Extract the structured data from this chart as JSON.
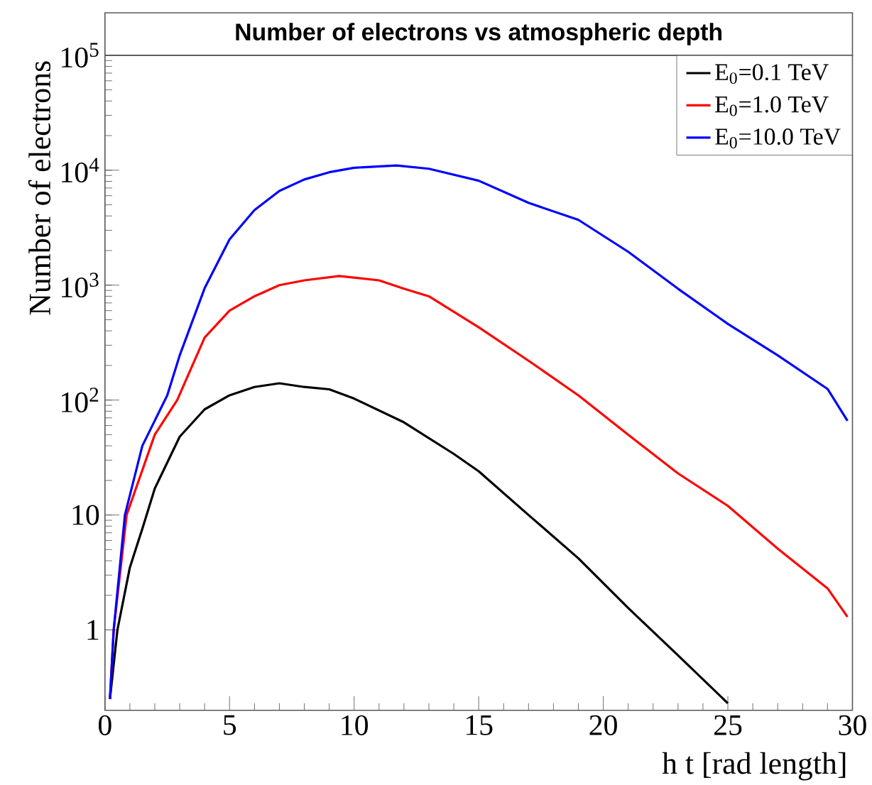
{
  "chart_data": {
    "type": "line",
    "title": "Number of electrons vs atmospheric depth",
    "xlabel": "h  t [rad length]",
    "ylabel": "Number of electrons",
    "log": "y",
    "xlim": [
      0,
      30
    ],
    "ylim": [
      0.2,
      100000
    ],
    "xticks": [
      0,
      5,
      10,
      15,
      20,
      25,
      30
    ],
    "yticks": [
      1,
      10,
      {
        "value": 100,
        "label": "10$^{2}$"
      },
      {
        "value": 1000,
        "label": "10$^{3}$"
      },
      {
        "value": 10000,
        "label": "10$^{4}$"
      },
      {
        "value": 100000,
        "label": "10$^{5}$"
      }
    ],
    "grid": false,
    "legend": "top right",
    "marker": "none",
    "line_style": "solid",
    "series": [
      {
        "name": "E$_{0}$=0.1 TeV",
        "color": "#000000",
        "x": [
          0.2,
          0.5,
          1,
          1.5,
          2,
          3,
          4,
          5,
          6,
          7,
          8,
          9,
          10,
          12,
          14,
          15,
          17,
          19,
          21,
          23,
          25
        ],
        "values": [
          0.25,
          1.0,
          3.5,
          7.6,
          17,
          48,
          83,
          110,
          130,
          140,
          130,
          124,
          103,
          64,
          34,
          24,
          10,
          4.2,
          1.55,
          0.6,
          0.23
        ]
      },
      {
        "name": "E$_{0}$=1.0 TeV",
        "color": "#ff0000",
        "x": [
          0.2,
          0.35,
          0.87,
          2,
          2.9,
          4,
          5,
          6,
          7,
          8,
          9.4,
          11,
          12,
          13,
          15,
          17,
          19,
          21,
          23,
          25,
          27,
          29,
          29.8
        ],
        "values": [
          0.25,
          1,
          10,
          50,
          100,
          350,
          600,
          800,
          1000,
          1100,
          1200,
          1100,
          930,
          800,
          430,
          220,
          110,
          50,
          23,
          12,
          5.1,
          2.3,
          1.3
        ]
      },
      {
        "name": "E$_{0}$=10.0 TeV",
        "color": "#0000ff",
        "x": [
          0.2,
          0.35,
          0.8,
          1.5,
          2.5,
          3,
          4,
          5,
          6,
          7,
          8,
          9,
          10,
          11.7,
          13,
          15,
          17,
          19,
          21,
          23,
          25,
          27,
          29,
          29.8
        ],
        "values": [
          0.25,
          1,
          10,
          40,
          110,
          245,
          940,
          2500,
          4500,
          6600,
          8300,
          9600,
          10500,
          11000,
          10300,
          8100,
          5200,
          3700,
          1950,
          930,
          460,
          245,
          125,
          66
        ]
      }
    ]
  }
}
